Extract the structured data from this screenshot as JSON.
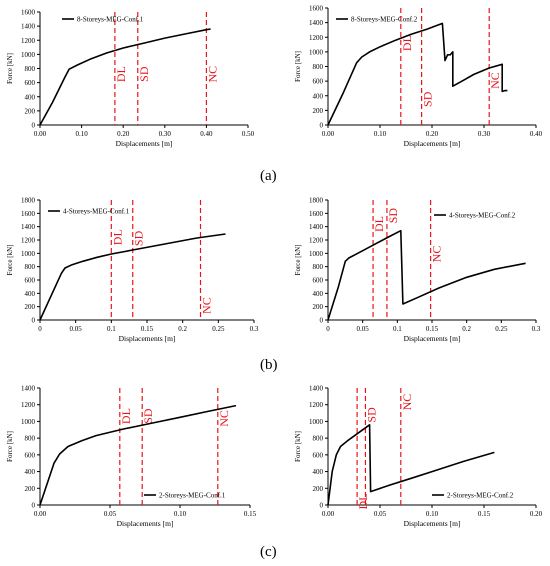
{
  "figure": {
    "panel_labels": [
      "(a)",
      "(b)",
      "(c)"
    ]
  },
  "colors": {
    "curve": "#000000",
    "limit": "#e8141b",
    "grid": "#000000"
  },
  "chart_data": [
    {
      "type": "line",
      "panel": "a",
      "side": "left",
      "xlabel": "Displacements [m]",
      "ylabel": "Force [kN]",
      "xlim": [
        0,
        0.5
      ],
      "ylim": [
        0,
        1600
      ],
      "xticks": [
        "0.00",
        "0.10",
        "0.20",
        "0.30",
        "0.40",
        "0.50"
      ],
      "xtick_values": [
        0,
        0.1,
        0.2,
        0.3,
        0.4,
        0.5
      ],
      "yticks": [
        "0",
        "200",
        "400",
        "600",
        "800",
        "1000",
        "1200",
        "1400",
        "1600"
      ],
      "ytick_values": [
        0,
        200,
        400,
        600,
        800,
        1000,
        1200,
        1400,
        1600
      ],
      "legend": "top-left",
      "series": [
        {
          "name": "8-Storeys-MEG-Conf.1",
          "x": [
            0,
            0.03,
            0.06,
            0.07,
            0.09,
            0.12,
            0.16,
            0.2,
            0.25,
            0.3,
            0.35,
            0.4,
            0.41
          ],
          "y": [
            0,
            320,
            680,
            790,
            850,
            930,
            1020,
            1090,
            1160,
            1230,
            1290,
            1350,
            1360
          ]
        }
      ],
      "limits": [
        {
          "label": "DL",
          "x": 0.18
        },
        {
          "label": "SD",
          "x": 0.235
        },
        {
          "label": "NC",
          "x": 0.4
        }
      ]
    },
    {
      "type": "line",
      "panel": "a",
      "side": "right",
      "xlabel": "Displacements [m]",
      "ylabel": "Force [kN]",
      "xlim": [
        0,
        0.4
      ],
      "ylim": [
        0,
        1600
      ],
      "xticks": [
        "0.00",
        "0.10",
        "0.20",
        "0.30",
        "0.40"
      ],
      "xtick_values": [
        0,
        0.1,
        0.2,
        0.3,
        0.4
      ],
      "yticks": [
        "0",
        "200",
        "400",
        "600",
        "800",
        "1000",
        "1200",
        "1400",
        "1600"
      ],
      "ytick_values": [
        0,
        200,
        400,
        600,
        800,
        1000,
        1200,
        1400,
        1600
      ],
      "legend": "top-left",
      "series": [
        {
          "name": "8-Storeys-MEG-Conf.2",
          "x": [
            0,
            0.03,
            0.055,
            0.065,
            0.08,
            0.1,
            0.13,
            0.16,
            0.19,
            0.22,
            0.225,
            0.23,
            0.235,
            0.24,
            0.24,
            0.26,
            0.28,
            0.31,
            0.335,
            0.335,
            0.34,
            0.345
          ],
          "y": [
            0,
            450,
            850,
            930,
            1000,
            1070,
            1160,
            1240,
            1310,
            1390,
            880,
            960,
            960,
            1000,
            530,
            610,
            690,
            780,
            830,
            460,
            470,
            470
          ]
        }
      ],
      "limits": [
        {
          "label": "DL",
          "x": 0.14
        },
        {
          "label": "SD",
          "x": 0.18
        },
        {
          "label": "NC",
          "x": 0.31
        }
      ]
    },
    {
      "type": "line",
      "panel": "b",
      "side": "left",
      "xlabel": "Displacements [m]",
      "ylabel": "Force [kN]",
      "xlim": [
        0,
        0.3
      ],
      "ylim": [
        0,
        1800
      ],
      "xticks": [
        "0",
        "0.05",
        "0.1",
        "0.15",
        "0.2",
        "0.25",
        "0.3"
      ],
      "xtick_values": [
        0,
        0.05,
        0.1,
        0.15,
        0.2,
        0.25,
        0.3
      ],
      "yticks": [
        "0",
        "200",
        "400",
        "600",
        "800",
        "1000",
        "1200",
        "1400",
        "1600",
        "1800"
      ],
      "ytick_values": [
        0,
        200,
        400,
        600,
        800,
        1000,
        1200,
        1400,
        1600,
        1800
      ],
      "legend": "top-left",
      "series": [
        {
          "name": "4-Storeys-MEG-Conf.1",
          "x": [
            0,
            0.015,
            0.03,
            0.035,
            0.045,
            0.06,
            0.08,
            0.1,
            0.13,
            0.16,
            0.19,
            0.22,
            0.26
          ],
          "y": [
            0,
            350,
            700,
            780,
            830,
            880,
            940,
            990,
            1050,
            1110,
            1170,
            1230,
            1290
          ]
        }
      ],
      "limits": [
        {
          "label": "DL",
          "x": 0.1
        },
        {
          "label": "SD",
          "x": 0.13
        },
        {
          "label": "NC",
          "x": 0.225
        }
      ]
    },
    {
      "type": "line",
      "panel": "b",
      "side": "right",
      "xlabel": "Displacements [m]",
      "ylabel": "Force [kN]",
      "xlim": [
        0,
        0.3
      ],
      "ylim": [
        0,
        1800
      ],
      "xticks": [
        "0",
        "0.05",
        "0.1",
        "0.15",
        "0.2",
        "0.25",
        "0.3"
      ],
      "xtick_values": [
        0,
        0.05,
        0.1,
        0.15,
        0.2,
        0.25,
        0.3
      ],
      "yticks": [
        "0",
        "200",
        "400",
        "600",
        "800",
        "1000",
        "1200",
        "1400",
        "1600",
        "1800"
      ],
      "ytick_values": [
        0,
        200,
        400,
        600,
        800,
        1000,
        1200,
        1400,
        1600,
        1800
      ],
      "legend": "top-right",
      "series": [
        {
          "name": "4-Storeys-MEG-Conf.2",
          "x": [
            0,
            0.015,
            0.025,
            0.03,
            0.05,
            0.07,
            0.09,
            0.105,
            0.108,
            0.13,
            0.16,
            0.2,
            0.24,
            0.285
          ],
          "y": [
            0,
            500,
            880,
            930,
            1040,
            1150,
            1260,
            1340,
            240,
            340,
            480,
            640,
            760,
            850
          ]
        }
      ],
      "limits": [
        {
          "label": "DL",
          "x": 0.065
        },
        {
          "label": "SD",
          "x": 0.085
        },
        {
          "label": "NC",
          "x": 0.148
        }
      ]
    },
    {
      "type": "line",
      "panel": "c",
      "side": "left",
      "xlabel": "Displacements [m]",
      "ylabel": "Force [kN]",
      "xlim": [
        0,
        0.15
      ],
      "ylim": [
        0,
        1400
      ],
      "xticks": [
        "0.00",
        "0.05",
        "0.10",
        "0.15"
      ],
      "xtick_values": [
        0,
        0.05,
        0.1,
        0.15
      ],
      "yticks": [
        "0",
        "200",
        "400",
        "600",
        "800",
        "1000",
        "1200",
        "1400"
      ],
      "ytick_values": [
        0,
        200,
        400,
        600,
        800,
        1000,
        1200,
        1400
      ],
      "legend": "bottom-right",
      "series": [
        {
          "name": "2-Storeys-MEG-Conf.1",
          "x": [
            0,
            0.005,
            0.01,
            0.014,
            0.02,
            0.03,
            0.04,
            0.06,
            0.08,
            0.1,
            0.12,
            0.14
          ],
          "y": [
            0,
            250,
            500,
            610,
            700,
            770,
            830,
            910,
            980,
            1050,
            1120,
            1190
          ]
        }
      ],
      "limits": [
        {
          "label": "DL",
          "x": 0.057
        },
        {
          "label": "SD",
          "x": 0.073
        },
        {
          "label": "NC",
          "x": 0.127
        }
      ]
    },
    {
      "type": "line",
      "panel": "c",
      "side": "right",
      "xlabel": "Displacements [m]",
      "ylabel": "Force [kN]",
      "xlim": [
        0,
        0.2
      ],
      "ylim": [
        0,
        1400
      ],
      "xticks": [
        "0.00",
        "0.05",
        "0.10",
        "0.15",
        "0.20"
      ],
      "xtick_values": [
        0,
        0.05,
        0.1,
        0.15,
        0.2
      ],
      "yticks": [
        "0",
        "200",
        "400",
        "600",
        "800",
        "1000",
        "1200",
        "1400"
      ],
      "ytick_values": [
        0,
        200,
        400,
        600,
        800,
        1000,
        1200,
        1400
      ],
      "legend": "bottom-right",
      "series": [
        {
          "name": "2-Storeys-MEG-Conf.2",
          "x": [
            0,
            0.004,
            0.008,
            0.012,
            0.02,
            0.03,
            0.04,
            0.041,
            0.06,
            0.08,
            0.1,
            0.13,
            0.16
          ],
          "y": [
            0,
            400,
            600,
            700,
            780,
            870,
            960,
            160,
            240,
            320,
            400,
            520,
            630
          ]
        }
      ],
      "limits": [
        {
          "label": "DL",
          "x": 0.028
        },
        {
          "label": "SD",
          "x": 0.036
        },
        {
          "label": "NC",
          "x": 0.07
        }
      ]
    }
  ]
}
